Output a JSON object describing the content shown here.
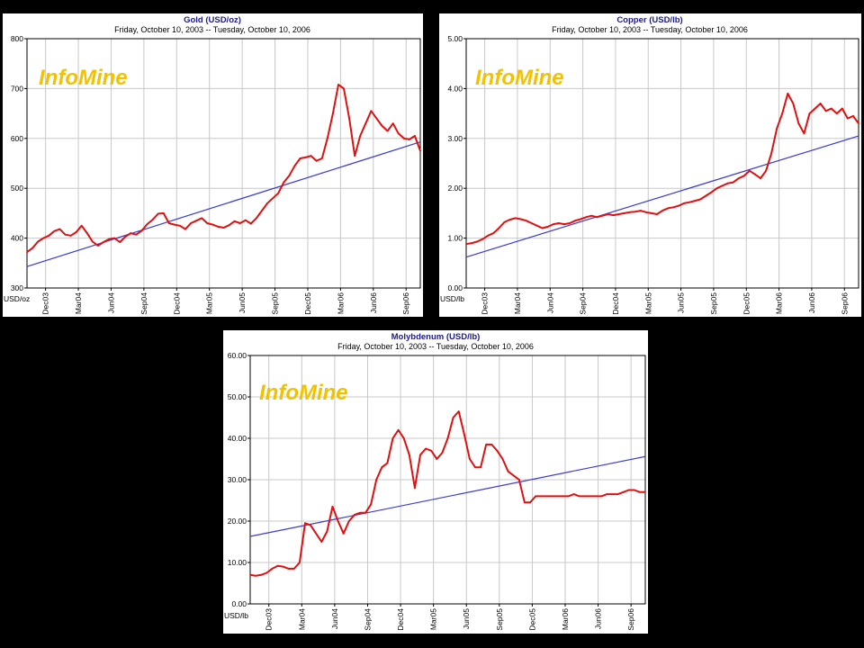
{
  "colors": {
    "series": "#e01010",
    "trend": "#3a3ad0",
    "grid": "#c8c8c8",
    "title": "#1a1a8c",
    "logo": "#f2c200"
  },
  "x_tick_labels": [
    "Dec03",
    "Mar04",
    "Jun04",
    "Sep04",
    "Dec04",
    "Mar05",
    "Jun05",
    "Sep05",
    "Dec05",
    "Mar06",
    "Jun06",
    "Sep06"
  ],
  "logo_text": "InfoMine",
  "charts": [
    {
      "title": "Gold (USD/oz)",
      "subtitle": "Friday, October 10, 2003  --  Tuesday, October 10, 2006",
      "unit": "USD/oz",
      "y_ticks": [
        "300",
        "400",
        "500",
        "600",
        "700",
        "800"
      ]
    },
    {
      "title": "Copper (USD/lb)",
      "subtitle": "Friday, October 10, 2003  --  Tuesday, October 10, 2006",
      "unit": "USD/lb",
      "y_ticks": [
        "0.00",
        "1.00",
        "2.00",
        "3.00",
        "4.00",
        "5.00"
      ]
    },
    {
      "title": "Molybdenum (USD/lb)",
      "subtitle": "Friday, October 10, 2003  --  Tuesday, October 10, 2006",
      "unit": "USD/lb",
      "y_ticks": [
        "0.00",
        "10.00",
        "20.00",
        "30.00",
        "40.00",
        "50.00",
        "60.00"
      ]
    }
  ],
  "chart_data": [
    {
      "type": "line",
      "title": "Gold (USD/oz)",
      "subtitle": "Friday, October 10, 2003  --  Tuesday, October 10, 2006",
      "ylabel": "USD/oz",
      "xlim": [
        0,
        36
      ],
      "ylim": [
        300,
        800
      ],
      "y_ticks": [
        300,
        400,
        500,
        600,
        700,
        800
      ],
      "x_ticks": [
        1.7,
        4.7,
        7.7,
        10.7,
        13.7,
        16.7,
        19.7,
        22.7,
        25.7,
        28.7,
        31.7,
        34.7
      ],
      "x_tick_labels": [
        "Dec03",
        "Mar04",
        "Jun04",
        "Sep04",
        "Dec04",
        "Mar05",
        "Jun05",
        "Sep05",
        "Dec05",
        "Mar06",
        "Jun06",
        "Sep06"
      ],
      "grid": true,
      "series": [
        {
          "x": [
            0,
            0.5,
            1,
            1.5,
            2,
            2.5,
            3,
            3.5,
            4,
            4.5,
            5,
            5.5,
            6,
            6.5,
            7,
            7.5,
            8,
            8.5,
            9,
            9.5,
            10,
            10.5,
            11,
            11.5,
            12,
            12.5,
            13,
            13.5,
            14,
            14.5,
            15,
            15.5,
            16,
            16.5,
            17,
            17.5,
            18,
            18.5,
            19,
            19.5,
            20,
            20.5,
            21,
            21.5,
            22,
            22.5,
            23,
            23.5,
            24,
            24.5,
            25,
            25.5,
            26,
            26.5,
            27,
            27.5,
            28,
            28.5,
            29,
            29.5,
            30,
            30.5,
            31,
            31.5,
            32,
            32.5,
            33,
            33.5,
            34,
            34.5,
            35,
            35.5,
            36
          ],
          "values": [
            372,
            380,
            393,
            400,
            405,
            414,
            418,
            407,
            405,
            412,
            425,
            410,
            393,
            385,
            392,
            398,
            400,
            392,
            403,
            410,
            407,
            415,
            428,
            437,
            449,
            450,
            430,
            427,
            425,
            418,
            430,
            435,
            440,
            430,
            427,
            423,
            421,
            426,
            434,
            430,
            436,
            429,
            440,
            455,
            470,
            480,
            490,
            512,
            525,
            545,
            560,
            562,
            565,
            555,
            560,
            600,
            650,
            708,
            700,
            640,
            565,
            605,
            630,
            655,
            640,
            625,
            615,
            630,
            610,
            600,
            598,
            605,
            575
          ]
        },
        {
          "x": [
            0,
            36
          ],
          "values": [
            343,
            593
          ]
        }
      ]
    },
    {
      "type": "line",
      "title": "Copper (USD/lb)",
      "subtitle": "Friday, October 10, 2003  --  Tuesday, October 10, 2006",
      "ylabel": "USD/lb",
      "xlim": [
        0,
        36
      ],
      "ylim": [
        0,
        5
      ],
      "y_ticks": [
        0,
        1,
        2,
        3,
        4,
        5
      ],
      "x_ticks": [
        1.7,
        4.7,
        7.7,
        10.7,
        13.7,
        16.7,
        19.7,
        22.7,
        25.7,
        28.7,
        31.7,
        34.7
      ],
      "x_tick_labels": [
        "Dec03",
        "Mar04",
        "Jun04",
        "Sep04",
        "Dec04",
        "Mar05",
        "Jun05",
        "Sep05",
        "Dec05",
        "Mar06",
        "Jun06",
        "Sep06"
      ],
      "grid": true,
      "series": [
        {
          "x": [
            0,
            0.5,
            1,
            1.5,
            2,
            2.5,
            3,
            3.5,
            4,
            4.5,
            5,
            5.5,
            6,
            6.5,
            7,
            7.5,
            8,
            8.5,
            9,
            9.5,
            10,
            10.5,
            11,
            11.5,
            12,
            12.5,
            13,
            13.5,
            14,
            14.5,
            15,
            15.5,
            16,
            16.5,
            17,
            17.5,
            18,
            18.5,
            19,
            19.5,
            20,
            20.5,
            21,
            21.5,
            22,
            22.5,
            23,
            23.5,
            24,
            24.5,
            25,
            25.5,
            26,
            26.5,
            27,
            27.5,
            28,
            28.5,
            29,
            29.5,
            30,
            30.5,
            31,
            31.5,
            32,
            32.5,
            33,
            33.5,
            34,
            34.5,
            35,
            35.5,
            36
          ],
          "values": [
            0.88,
            0.9,
            0.93,
            0.98,
            1.05,
            1.1,
            1.2,
            1.32,
            1.37,
            1.4,
            1.38,
            1.35,
            1.3,
            1.25,
            1.2,
            1.23,
            1.28,
            1.3,
            1.28,
            1.3,
            1.35,
            1.38,
            1.42,
            1.45,
            1.42,
            1.45,
            1.48,
            1.46,
            1.48,
            1.5,
            1.52,
            1.53,
            1.55,
            1.52,
            1.5,
            1.48,
            1.55,
            1.6,
            1.62,
            1.65,
            1.7,
            1.72,
            1.75,
            1.78,
            1.85,
            1.92,
            2.0,
            2.05,
            2.1,
            2.12,
            2.2,
            2.25,
            2.35,
            2.28,
            2.2,
            2.35,
            2.7,
            3.2,
            3.5,
            3.9,
            3.7,
            3.3,
            3.1,
            3.5,
            3.6,
            3.7,
            3.55,
            3.6,
            3.5,
            3.6,
            3.4,
            3.45,
            3.3
          ]
        },
        {
          "x": [
            0,
            36
          ],
          "values": [
            0.62,
            3.05
          ]
        }
      ]
    },
    {
      "type": "line",
      "title": "Molybdenum (USD/lb)",
      "subtitle": "Friday, October 10, 2003  --  Tuesday, October 10, 2006",
      "ylabel": "USD/lb",
      "xlim": [
        0,
        36
      ],
      "ylim": [
        0,
        60
      ],
      "y_ticks": [
        0,
        10,
        20,
        30,
        40,
        50,
        60
      ],
      "x_ticks": [
        1.7,
        4.7,
        7.7,
        10.7,
        13.7,
        16.7,
        19.7,
        22.7,
        25.7,
        28.7,
        31.7,
        34.7
      ],
      "x_tick_labels": [
        "Dec03",
        "Mar04",
        "Jun04",
        "Sep04",
        "Dec04",
        "Mar05",
        "Jun05",
        "Sep05",
        "Dec05",
        "Mar06",
        "Jun06",
        "Sep06"
      ],
      "grid": true,
      "series": [
        {
          "x": [
            0,
            0.5,
            1,
            1.5,
            2,
            2.5,
            3,
            3.5,
            4,
            4.5,
            5,
            5.5,
            6,
            6.5,
            7,
            7.5,
            8,
            8.5,
            9,
            9.5,
            10,
            10.5,
            11,
            11.5,
            12,
            12.5,
            13,
            13.5,
            14,
            14.5,
            15,
            15.5,
            16,
            16.5,
            17,
            17.5,
            18,
            18.5,
            19,
            19.5,
            20,
            20.5,
            21,
            21.5,
            22,
            22.5,
            23,
            23.5,
            24,
            24.5,
            25,
            25.5,
            26,
            26.5,
            27,
            27.5,
            28,
            28.5,
            29,
            29.5,
            30,
            30.5,
            31,
            31.5,
            32,
            32.5,
            33,
            33.5,
            34,
            34.5,
            35,
            35.5,
            36
          ],
          "values": [
            7.0,
            6.8,
            7.0,
            7.5,
            8.5,
            9.2,
            9.0,
            8.5,
            8.5,
            10.0,
            19.5,
            19.0,
            17.0,
            15.0,
            17.5,
            23.5,
            20.0,
            17.0,
            20.0,
            21.5,
            22.0,
            22.0,
            24.0,
            30.0,
            33.0,
            34.0,
            40.0,
            42.0,
            40.0,
            36.0,
            28.0,
            36.0,
            37.5,
            37.0,
            35.0,
            36.5,
            40.0,
            45.0,
            46.5,
            41.0,
            35.0,
            33.0,
            33.0,
            38.5,
            38.5,
            37.0,
            35.0,
            32.0,
            31.0,
            30.0,
            24.5,
            24.5,
            26.0,
            26.0,
            26.0,
            26.0,
            26.0,
            26.0,
            26.0,
            26.5,
            26.0,
            26.0,
            26.0,
            26.0,
            26.0,
            26.5,
            26.5,
            26.5,
            27.0,
            27.5,
            27.5,
            27.0,
            27.0
          ]
        },
        {
          "x": [
            0,
            36
          ],
          "values": [
            16.3,
            35.6
          ]
        }
      ]
    }
  ]
}
